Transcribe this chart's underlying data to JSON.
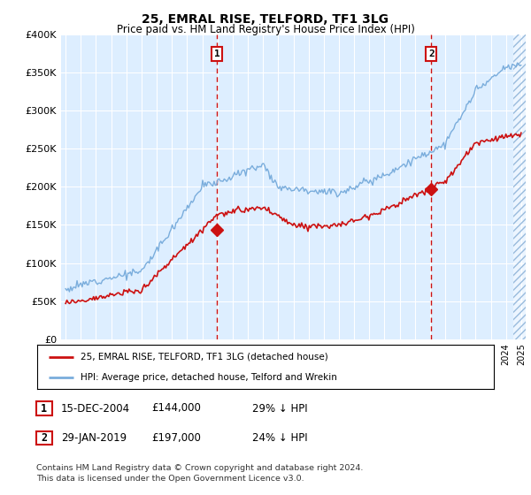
{
  "title": "25, EMRAL RISE, TELFORD, TF1 3LG",
  "subtitle": "Price paid vs. HM Land Registry's House Price Index (HPI)",
  "ylim": [
    0,
    400000
  ],
  "yticks": [
    0,
    50000,
    100000,
    150000,
    200000,
    250000,
    300000,
    350000,
    400000
  ],
  "ytick_labels": [
    "£0",
    "£50K",
    "£100K",
    "£150K",
    "£200K",
    "£250K",
    "£300K",
    "£350K",
    "£400K"
  ],
  "hpi_color": "#7aaddc",
  "price_color": "#cc1111",
  "bg_color": "#ddeeff",
  "sale1_date": 2004.96,
  "sale1_price": 144000,
  "sale1_label": "1",
  "sale2_date": 2019.08,
  "sale2_price": 197000,
  "sale2_label": "2",
  "legend_line1": "25, EMRAL RISE, TELFORD, TF1 3LG (detached house)",
  "legend_line2": "HPI: Average price, detached house, Telford and Wrekin",
  "table_row1": [
    "1",
    "15-DEC-2004",
    "£144,000",
    "29% ↓ HPI"
  ],
  "table_row2": [
    "2",
    "29-JAN-2019",
    "£197,000",
    "24% ↓ HPI"
  ],
  "footer": "Contains HM Land Registry data © Crown copyright and database right 2024.\nThis data is licensed under the Open Government Licence v3.0.",
  "hatch_x_start": 2024.5,
  "xmin": 1994.7,
  "xmax": 2025.3
}
